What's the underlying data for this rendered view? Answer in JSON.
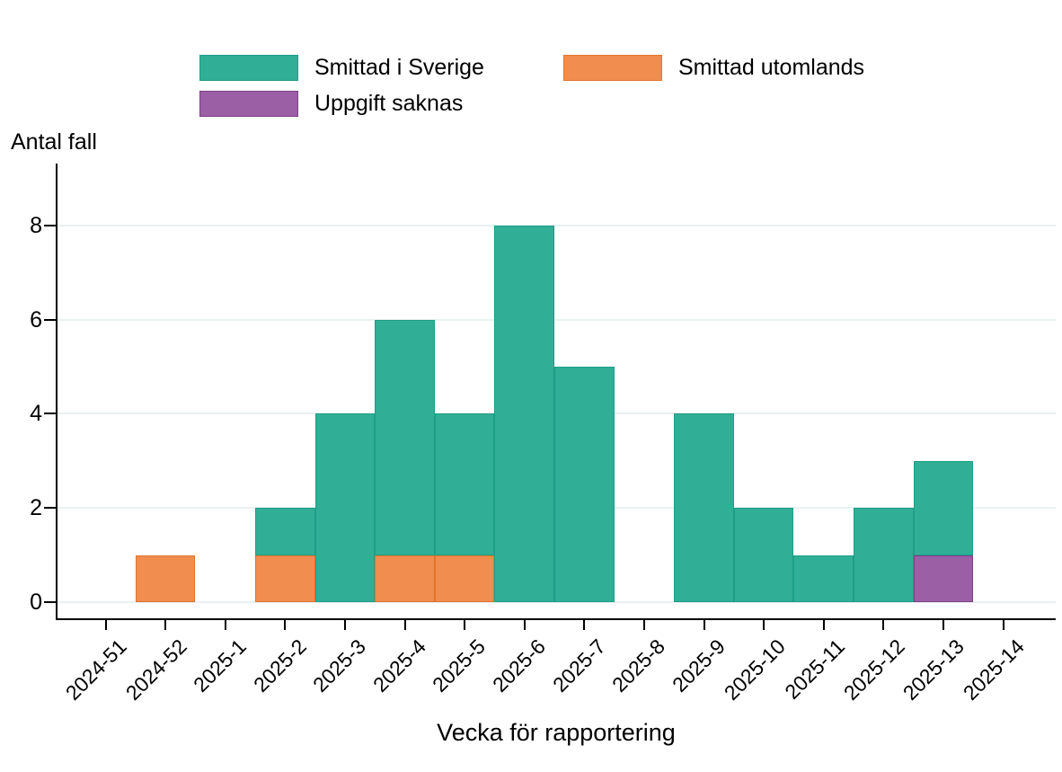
{
  "chart_data": {
    "type": "bar",
    "stacked": true,
    "title": "",
    "ylabel": "Antal fall",
    "xlabel": "Vecka för rapportering",
    "categories": [
      "2024-51",
      "2024-52",
      "2025-1",
      "2025-2",
      "2025-3",
      "2025-4",
      "2025-5",
      "2025-6",
      "2025-7",
      "2025-8",
      "2025-9",
      "2025-10",
      "2025-11",
      "2025-12",
      "2025-13",
      "2025-14"
    ],
    "series": [
      {
        "name": "Smittad i Sverige",
        "color": "#30ae96",
        "border": "#1d9e87",
        "values": [
          0,
          0,
          0,
          1,
          4,
          5,
          3,
          8,
          5,
          0,
          4,
          2,
          1,
          2,
          2,
          0
        ]
      },
      {
        "name": "Smittad utomlands",
        "color": "#f08d4f",
        "border": "#e0752d",
        "values": [
          0,
          1,
          0,
          1,
          0,
          1,
          1,
          0,
          0,
          0,
          0,
          0,
          0,
          0,
          0,
          0
        ]
      },
      {
        "name": "Uppgift saknas",
        "color": "#9a5fa5",
        "border": "#7c4187",
        "values": [
          0,
          0,
          0,
          0,
          0,
          0,
          0,
          0,
          0,
          0,
          0,
          0,
          0,
          0,
          1,
          0
        ]
      }
    ],
    "stack_order": [
      1,
      2,
      0
    ],
    "yticks": [
      0,
      2,
      4,
      6,
      8
    ],
    "ylim": [
      0,
      9.3
    ],
    "grid": "horizontal",
    "legend_position": "top",
    "background": "#ffffff",
    "grid_color": "#e9f1f2",
    "axis_color": "#000000"
  }
}
